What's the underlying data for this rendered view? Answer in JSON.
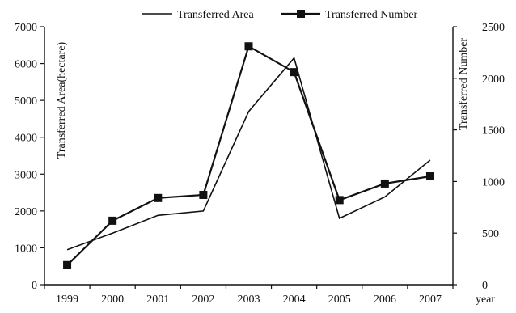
{
  "chart_data": {
    "type": "line",
    "categories": [
      "1999",
      "2000",
      "2001",
      "2002",
      "2003",
      "2004",
      "2005",
      "2006",
      "2007"
    ],
    "x_axis_label": "year",
    "y_left": {
      "label": "Transferred Area(hectare)",
      "range": [
        0,
        7000
      ],
      "ticks": [
        "0",
        "1000",
        "2000",
        "3000",
        "4000",
        "5000",
        "6000",
        "7000"
      ]
    },
    "y_right": {
      "label": "Transferred Number",
      "range": [
        0,
        2500
      ],
      "ticks": [
        "0",
        "500",
        "1000",
        "1500",
        "2000",
        "2500"
      ]
    },
    "series": [
      {
        "name": "Transferred Area",
        "axis": "left",
        "marker": "none",
        "values": [
          950,
          1400,
          1880,
          2000,
          4700,
          6150,
          1800,
          2380,
          3380
        ]
      },
      {
        "name": "Transferred Number",
        "axis": "right",
        "marker": "square",
        "values": [
          190,
          620,
          840,
          870,
          2310,
          2060,
          820,
          980,
          1050
        ]
      }
    ],
    "legend_position": "top-center",
    "grid": false
  }
}
